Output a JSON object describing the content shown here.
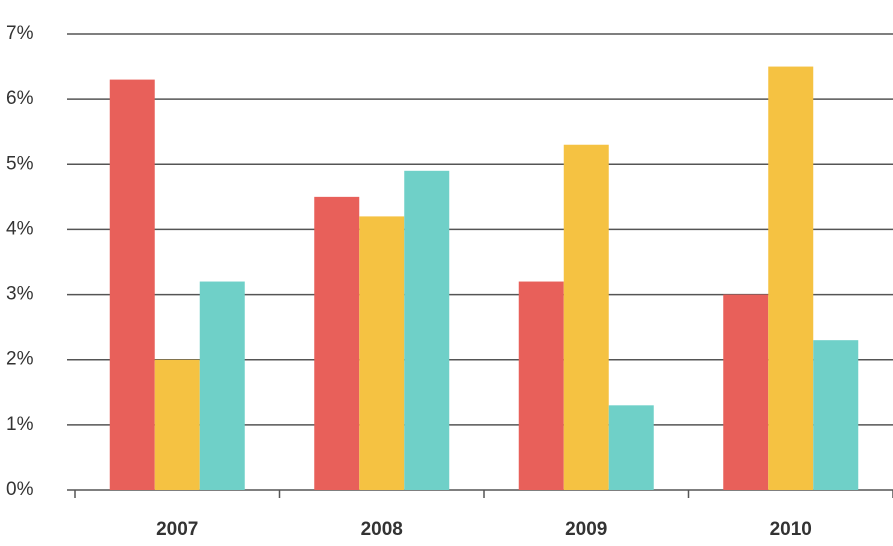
{
  "chart_data": {
    "type": "bar",
    "categories": [
      "2007",
      "2008",
      "2009",
      "2010"
    ],
    "series": [
      {
        "color": "#e8605a",
        "values": [
          6.3,
          4.5,
          3.2,
          3.0
        ]
      },
      {
        "color": "#f5c242",
        "values": [
          2.0,
          4.2,
          5.3,
          6.5
        ]
      },
      {
        "color": "#6fd0c8",
        "values": [
          3.2,
          4.9,
          1.3,
          2.3
        ]
      }
    ],
    "ylim": [
      0,
      7
    ],
    "yticks": [
      {
        "value": 0,
        "label": "0%"
      },
      {
        "value": 1,
        "label": "1%"
      },
      {
        "value": 2,
        "label": "2%"
      },
      {
        "value": 3,
        "label": "3%"
      },
      {
        "value": 4,
        "label": "4%"
      },
      {
        "value": 5,
        "label": "5%"
      },
      {
        "value": 6,
        "label": "6%"
      },
      {
        "value": 7,
        "label": "7%"
      }
    ],
    "grid": true
  }
}
